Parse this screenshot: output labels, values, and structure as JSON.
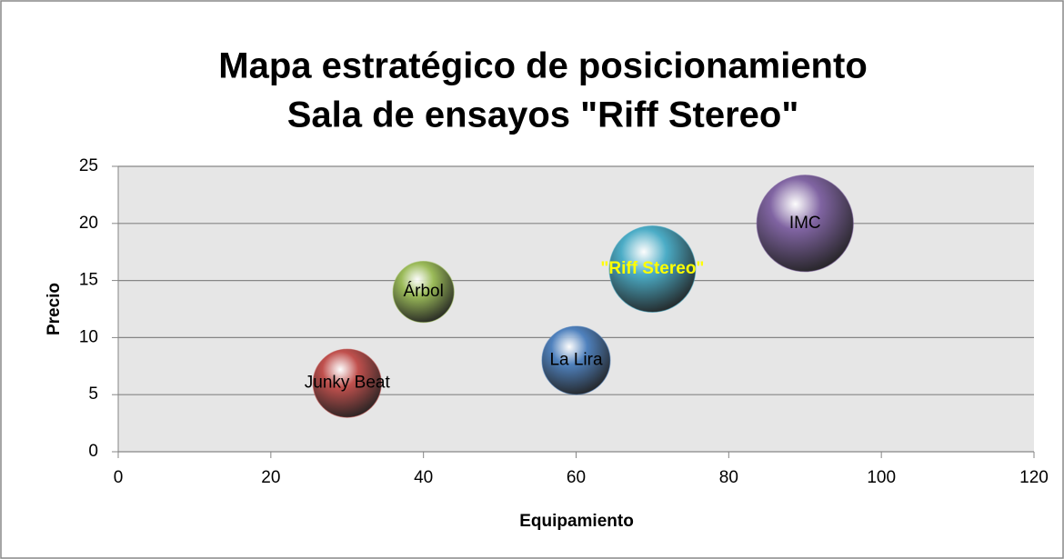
{
  "chart_data": {
    "type": "bubble",
    "title": "Mapa estratégico de posicionamiento",
    "subtitle": "Sala de ensayos \"Riff Stereo\"",
    "xlabel": "Equipamiento",
    "ylabel": "Precio",
    "categories": [
      "Junky Beat",
      "Árbol",
      "La Lira",
      "\"Riff Stereo\"",
      "IMC"
    ],
    "x": [
      30,
      40,
      60,
      70,
      90
    ],
    "values": [
      6,
      14,
      8,
      16,
      20
    ],
    "sizes": [
      5,
      4,
      5,
      8,
      10
    ],
    "colors": [
      "#c0504d",
      "#9bbb59",
      "#4f81bd",
      "#4bacc6",
      "#8064a2"
    ],
    "label_colors": [
      "#000000",
      "#000000",
      "#000000",
      "#ffff00",
      "#000000"
    ],
    "xlim": [
      0,
      120
    ],
    "xticks": [
      0,
      20,
      40,
      60,
      80,
      100,
      120
    ],
    "ylim": [
      0,
      25
    ],
    "yticks": [
      0,
      5,
      10,
      15,
      20,
      25
    ],
    "grid": true
  }
}
